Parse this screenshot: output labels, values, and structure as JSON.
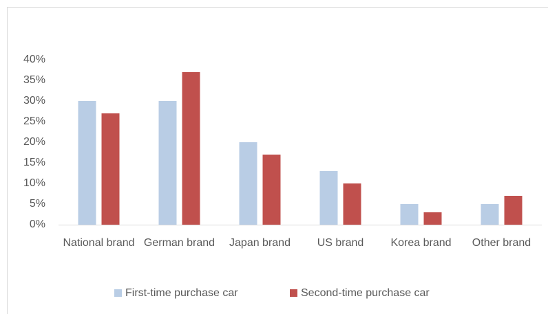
{
  "chart_data": {
    "type": "bar",
    "categories": [
      "National brand",
      "German brand",
      "Japan brand",
      "US brand",
      "Korea brand",
      "Other brand"
    ],
    "series": [
      {
        "name": "First-time purchase car",
        "color": "#b9cde5",
        "values": [
          30,
          30,
          20,
          13,
          5,
          5
        ]
      },
      {
        "name": "Second-time purchase car",
        "color": "#c0504d",
        "values": [
          27,
          37,
          17,
          10,
          3,
          7
        ]
      }
    ],
    "ylim": [
      0,
      40
    ],
    "yticks": [
      {
        "value": 0,
        "label": "0%"
      },
      {
        "value": 5,
        "label": "5%"
      },
      {
        "value": 10,
        "label": "10%"
      },
      {
        "value": 15,
        "label": "15%"
      },
      {
        "value": 20,
        "label": "20%"
      },
      {
        "value": 25,
        "label": "25%"
      },
      {
        "value": 30,
        "label": "30%"
      },
      {
        "value": 35,
        "label": "35%"
      },
      {
        "value": 40,
        "label": "40%"
      }
    ],
    "grid": false,
    "legend": "bottom"
  }
}
